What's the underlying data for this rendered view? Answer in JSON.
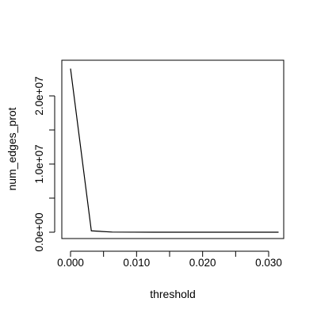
{
  "chart_data": {
    "type": "line",
    "title": "",
    "xlabel": "threshold",
    "ylabel": "num_edges_prot",
    "xlim": [
      0,
      0.0315
    ],
    "ylim": [
      0,
      24000000
    ],
    "x_ticks": [
      {
        "value": 0.0,
        "label": "0.000"
      },
      {
        "value": 0.005,
        "label": ""
      },
      {
        "value": 0.01,
        "label": "0.010"
      },
      {
        "value": 0.015,
        "label": ""
      },
      {
        "value": 0.02,
        "label": "0.020"
      },
      {
        "value": 0.025,
        "label": ""
      },
      {
        "value": 0.03,
        "label": "0.030"
      }
    ],
    "y_ticks": [
      {
        "value": 0,
        "label": "0.0e+00"
      },
      {
        "value": 5000000,
        "label": ""
      },
      {
        "value": 10000000,
        "label": "1.0e+07"
      },
      {
        "value": 15000000,
        "label": ""
      },
      {
        "value": 20000000,
        "label": "2.0e+07"
      }
    ],
    "grid": false,
    "legend": "none",
    "series": [
      {
        "x": [
          0.0,
          0.00315,
          0.0063,
          0.00945,
          0.0126,
          0.01575,
          0.0189,
          0.02205,
          0.0252,
          0.02835,
          0.0315
        ],
        "y": [
          24000000,
          200000,
          20000,
          5000,
          2000,
          1000,
          500,
          200,
          100,
          50,
          20
        ],
        "color": "#000000"
      }
    ]
  }
}
